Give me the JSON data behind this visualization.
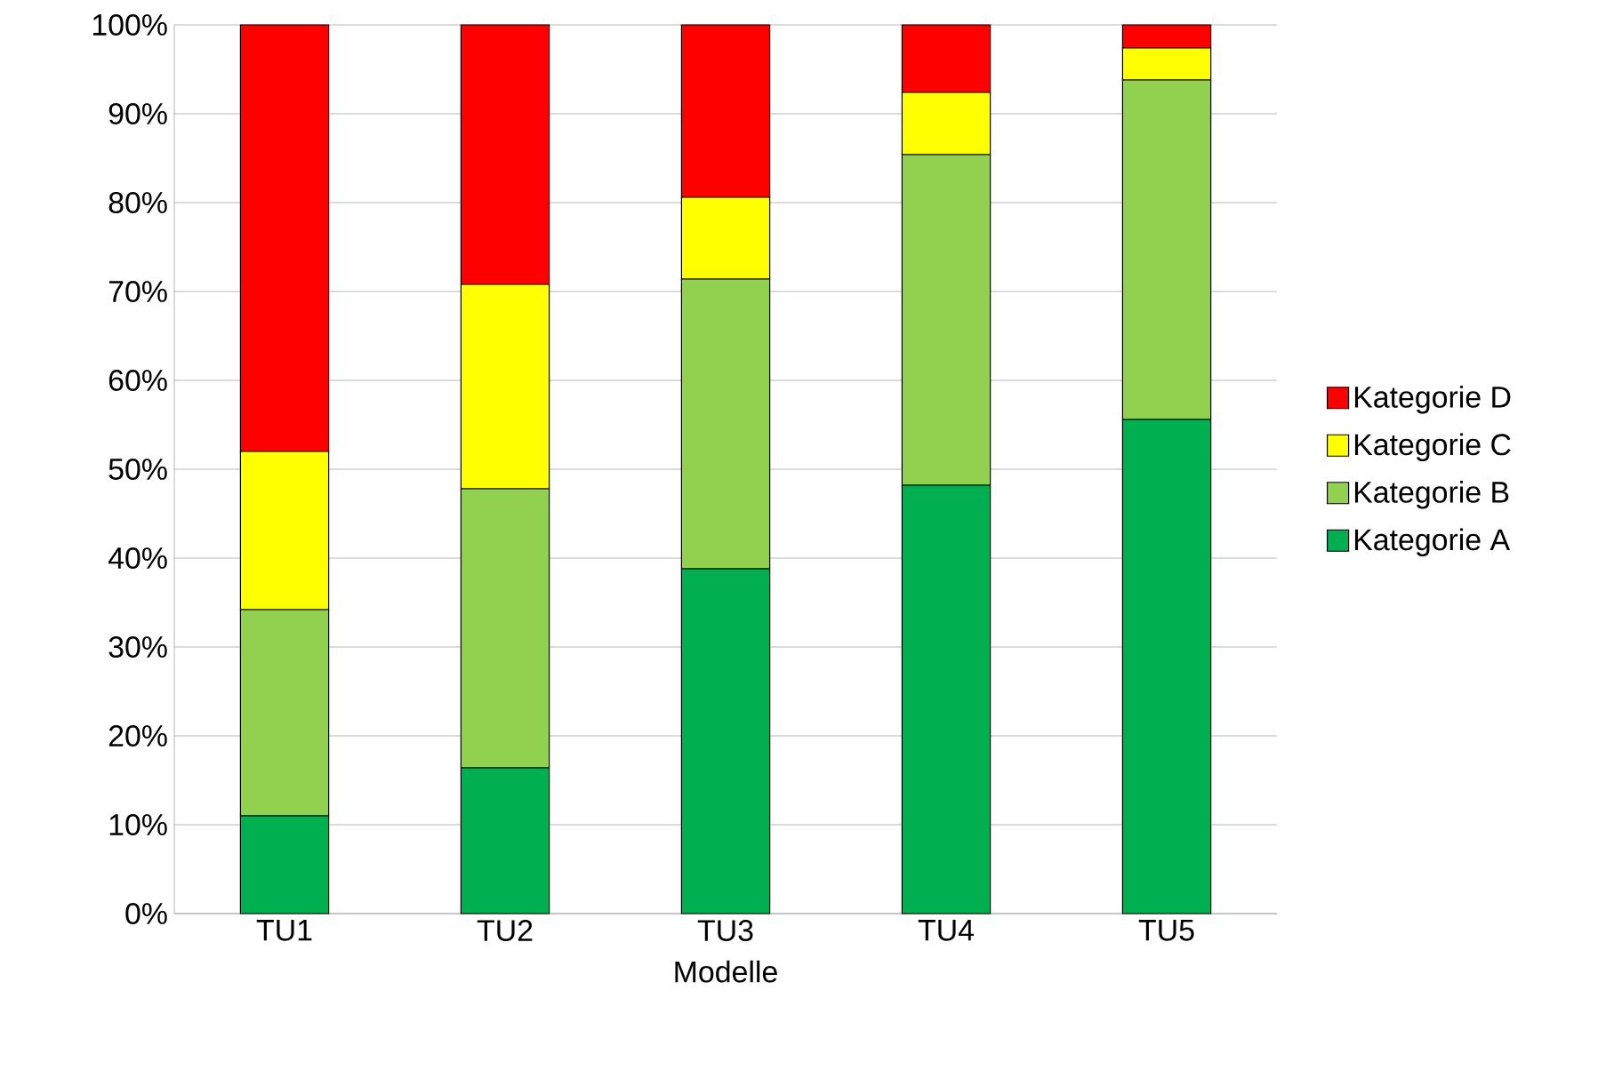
{
  "chart_data": {
    "type": "bar",
    "stacked": true,
    "xlabel": "Modelle",
    "categories": [
      "TU1",
      "TU2",
      "TU3",
      "TU4",
      "TU5"
    ],
    "series": [
      {
        "name": "Kategorie A",
        "color": "#00b050",
        "values": [
          11,
          16.4,
          38.8,
          48.2,
          55.6
        ]
      },
      {
        "name": "Kategorie B",
        "color": "#92d050",
        "values": [
          23.2,
          31.4,
          32.6,
          37.2,
          38.2
        ]
      },
      {
        "name": "Kategorie C",
        "color": "#ffff00",
        "values": [
          17.8,
          23,
          9.2,
          7,
          3.6
        ]
      },
      {
        "name": "Kategorie D",
        "color": "#ff0000",
        "values": [
          48,
          29.2,
          19.4,
          7.6,
          2.6
        ]
      }
    ],
    "ylim": [
      0,
      100
    ],
    "yticks": [
      {
        "value": 0,
        "label": "0%"
      },
      {
        "value": 10,
        "label": "10%"
      },
      {
        "value": 20,
        "label": "20%"
      },
      {
        "value": 30,
        "label": "30%"
      },
      {
        "value": 40,
        "label": "40%"
      },
      {
        "value": 50,
        "label": "50%"
      },
      {
        "value": 60,
        "label": "60%"
      },
      {
        "value": 70,
        "label": "70%"
      },
      {
        "value": 80,
        "label": "80%"
      },
      {
        "value": 90,
        "label": "90%"
      },
      {
        "value": 100,
        "label": "100%"
      }
    ],
    "grid": "y",
    "legend": "right"
  }
}
